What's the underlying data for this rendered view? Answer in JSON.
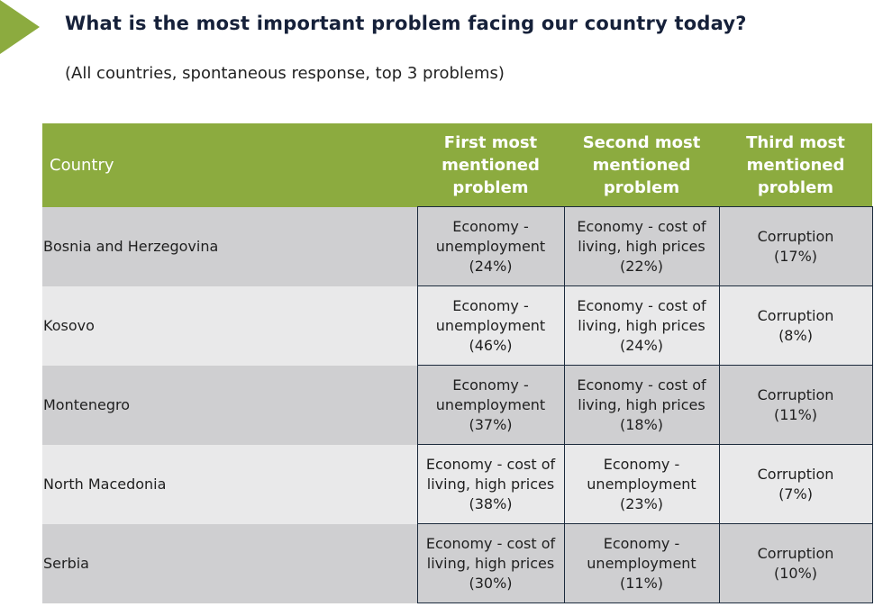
{
  "header": {
    "title": "What is the most important problem facing our country today?",
    "subtitle": "(All countries, spontaneous response, top 3 problems)"
  },
  "table": {
    "columns": {
      "country": "Country",
      "first": [
        "First most",
        "mentioned",
        "problem"
      ],
      "second": [
        "Second most",
        "mentioned",
        "problem"
      ],
      "third": [
        "Third most",
        "mentioned",
        "problem"
      ]
    },
    "rows": [
      {
        "country": "Bosnia and Herzegovina",
        "first": [
          "Economy -",
          "unemployment",
          "(24%)"
        ],
        "second": [
          "Economy - cost of",
          "living, high prices",
          "(22%)"
        ],
        "third": [
          "Corruption",
          "(17%)"
        ]
      },
      {
        "country": "Kosovo",
        "first": [
          "Economy -",
          "unemployment",
          "(46%)"
        ],
        "second": [
          "Economy - cost of",
          "living, high prices",
          "(24%)"
        ],
        "third": [
          "Corruption",
          "(8%)"
        ]
      },
      {
        "country": "Montenegro",
        "first": [
          "Economy -",
          "unemployment",
          "(37%)"
        ],
        "second": [
          "Economy - cost of",
          "living, high prices",
          "(18%)"
        ],
        "third": [
          "Corruption",
          "(11%)"
        ]
      },
      {
        "country": "North Macedonia",
        "first": [
          "Economy - cost of",
          "living, high prices",
          "(38%)"
        ],
        "second": [
          "Economy -",
          "unemployment",
          "(23%)"
        ],
        "third": [
          "Corruption",
          "(7%)"
        ]
      },
      {
        "country": "Serbia",
        "first": [
          "Economy - cost of",
          "living, high prices",
          "(30%)"
        ],
        "second": [
          "Economy -",
          "unemployment",
          "(11%)"
        ],
        "third": [
          "Corruption",
          "(10%)"
        ]
      }
    ]
  },
  "colors": {
    "accent": "#8cab3f",
    "title": "#16213a",
    "row_dark": "#cfcfd1",
    "row_light": "#e9e9ea",
    "cell_border": "#1c2b3d"
  }
}
